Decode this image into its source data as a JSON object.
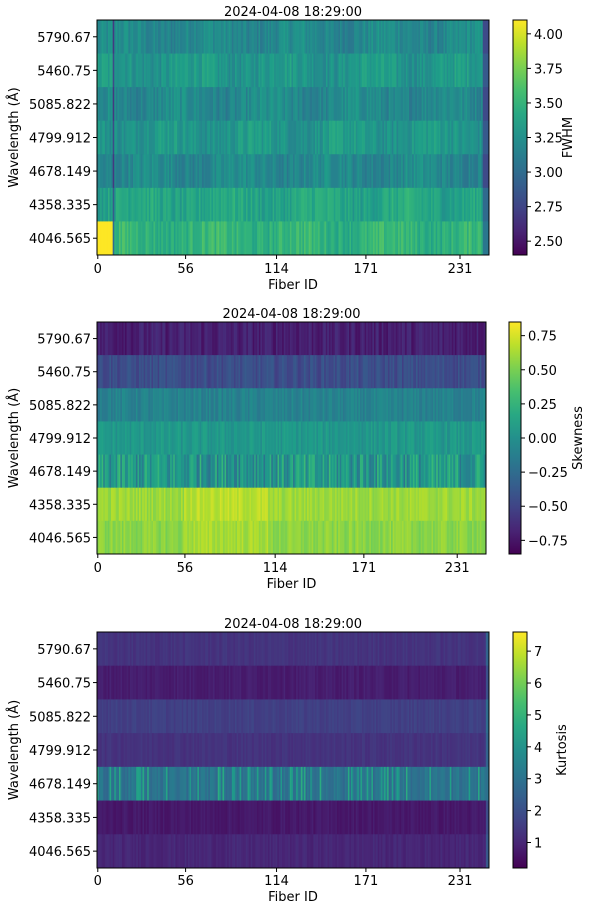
{
  "chart_data": [
    {
      "type": "heatmap",
      "title": "2024-04-08 18:29:00",
      "xlabel": "Fiber ID",
      "ylabel": "Wavelength (Å)",
      "x_ticks": [
        "0",
        "56",
        "114",
        "171",
        "231"
      ],
      "y_categories": [
        "5790.67",
        "5460.75",
        "5085.822",
        "4799.912",
        "4678.149",
        "4358.335",
        "4046.565"
      ],
      "colorbar_label": "FWHM",
      "colorbar_ticks": [
        "2.50",
        "2.75",
        "3.00",
        "3.25",
        "3.50",
        "3.75",
        "4.00"
      ],
      "colorbar_range": [
        2.4,
        4.1
      ],
      "colormap": "viridis",
      "row_levels": [
        3.2,
        3.3,
        3.2,
        3.3,
        3.2,
        3.4,
        3.5
      ],
      "fiber_count": 250
    },
    {
      "type": "heatmap",
      "title": "2024-04-08 18:29:00",
      "xlabel": "Fiber ID",
      "ylabel": "Wavelength (Å)",
      "x_ticks": [
        "0",
        "56",
        "114",
        "171",
        "231"
      ],
      "y_categories": [
        "5790.67",
        "5460.75",
        "5085.822",
        "4799.912",
        "4678.149",
        "4358.335",
        "4046.565"
      ],
      "colorbar_label": "Skewness",
      "colorbar_ticks": [
        "0.75",
        "0.50",
        "0.25",
        "0.00",
        "−0.25",
        "−0.50",
        "−0.75"
      ],
      "colorbar_range": [
        -0.85,
        0.85
      ],
      "colormap": "viridis",
      "row_levels": [
        -0.7,
        -0.45,
        -0.1,
        0.05,
        0.05,
        0.6,
        0.55
      ],
      "fiber_count": 250
    },
    {
      "type": "heatmap",
      "title": "2024-04-08 18:29:00",
      "xlabel": "Fiber ID",
      "ylabel": "Wavelength (Å)",
      "x_ticks": [
        "0",
        "56",
        "114",
        "171",
        "231"
      ],
      "y_categories": [
        "5790.67",
        "5460.75",
        "5085.822",
        "4799.912",
        "4678.149",
        "4358.335",
        "4046.565"
      ],
      "colorbar_label": "Kurtosis",
      "colorbar_ticks": [
        "7",
        "6",
        "5",
        "4",
        "3",
        "2",
        "1"
      ],
      "colorbar_range": [
        0.2,
        7.6
      ],
      "colormap": "viridis",
      "row_levels": [
        1.3,
        0.8,
        1.6,
        1.3,
        3.0,
        0.7,
        1.0
      ],
      "fiber_count": 250
    }
  ]
}
